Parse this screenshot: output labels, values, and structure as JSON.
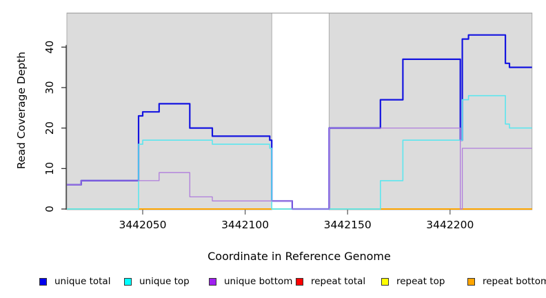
{
  "chart_data": {
    "type": "line",
    "subtype": "step-coverage",
    "title": "",
    "xlabel": "Coordinate in Reference Genome",
    "ylabel": "Read Coverage Depth",
    "xlim": [
      3442013,
      3442240
    ],
    "ylim": [
      0,
      48.4
    ],
    "x_ticks": [
      3442050,
      3442100,
      3442150,
      3442200
    ],
    "y_ticks": [
      0,
      10,
      20,
      30,
      40
    ],
    "grid": false,
    "legend_position": "bottom",
    "background_color": "#FFFFFF",
    "shaded_regions": [
      {
        "x0": 3442013,
        "x1": 3442113,
        "fill": "#DCDCDC"
      },
      {
        "x0": 3442141,
        "x1": 3442240,
        "fill": "#DCDCDC"
      }
    ],
    "series": [
      {
        "name": "unique total",
        "line_color": "#1414E0",
        "legend_color": "#0000EE",
        "steps": [
          [
            3442013,
            6
          ],
          [
            3442020,
            7
          ],
          [
            3442048,
            23
          ],
          [
            3442050,
            24
          ],
          [
            3442058,
            26
          ],
          [
            3442073,
            20
          ],
          [
            3442084,
            18
          ],
          [
            3442112,
            17
          ],
          [
            3442113,
            2
          ],
          [
            3442123,
            0
          ],
          [
            3442141,
            20
          ],
          [
            3442166,
            27
          ],
          [
            3442177,
            37
          ],
          [
            3442205,
            17
          ],
          [
            3442206,
            42
          ],
          [
            3442209,
            43
          ],
          [
            3442227,
            36
          ],
          [
            3442229,
            35
          ]
        ]
      },
      {
        "name": "unique top",
        "line_color": "#5CE6EE",
        "legend_color": "#00FFFF",
        "steps": [
          [
            3442013,
            0
          ],
          [
            3442048,
            16
          ],
          [
            3442050,
            17
          ],
          [
            3442084,
            16
          ],
          [
            3442112,
            15
          ],
          [
            3442113,
            0
          ],
          [
            3442166,
            7
          ],
          [
            3442177,
            17
          ],
          [
            3442206,
            27
          ],
          [
            3442209,
            28
          ],
          [
            3442227,
            21
          ],
          [
            3442229,
            20
          ]
        ]
      },
      {
        "name": "unique bottom",
        "line_color": "#AF7CDC",
        "legend_color": "#A020F0",
        "steps": [
          [
            3442013,
            6
          ],
          [
            3442020,
            7
          ],
          [
            3442058,
            9
          ],
          [
            3442073,
            3
          ],
          [
            3442084,
            2
          ],
          [
            3442123,
            0
          ],
          [
            3442141,
            20
          ],
          [
            3442205,
            0
          ],
          [
            3442206,
            15
          ]
        ]
      },
      {
        "name": "repeat total",
        "line_color": "#DD0000",
        "legend_color": "#FF0000",
        "steps": [
          [
            3442013,
            0
          ]
        ]
      },
      {
        "name": "repeat top",
        "line_color": "#F0F000",
        "legend_color": "#FFFF00",
        "steps": [
          [
            3442013,
            0
          ]
        ]
      },
      {
        "name": "repeat bottom",
        "line_color": "#FFA500",
        "legend_color": "#FFA500",
        "steps": [
          [
            3442013,
            0
          ]
        ]
      }
    ],
    "baseline_blend": {
      "color": "#8FD5A5",
      "segments": [
        [
          3442013,
          3442048
        ],
        [
          3442113,
          3442166
        ]
      ],
      "note": "pale green baseline where unique top sits at zero"
    }
  }
}
